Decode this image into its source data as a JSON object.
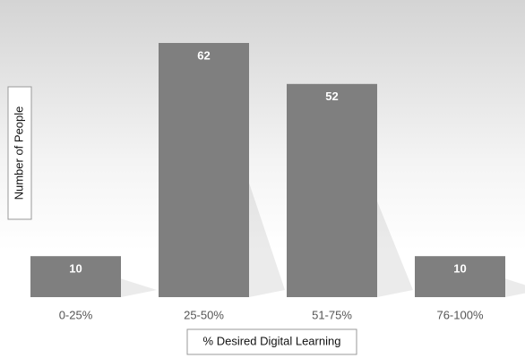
{
  "chart_data": {
    "type": "bar",
    "x_label": "% Desired Digital Learning",
    "y_label": "Number of People",
    "categories": [
      "0-25%",
      "25-50%",
      "51-75%",
      "76-100%"
    ],
    "values": [
      10,
      62,
      52,
      10
    ],
    "color": "#7f7f7f"
  }
}
